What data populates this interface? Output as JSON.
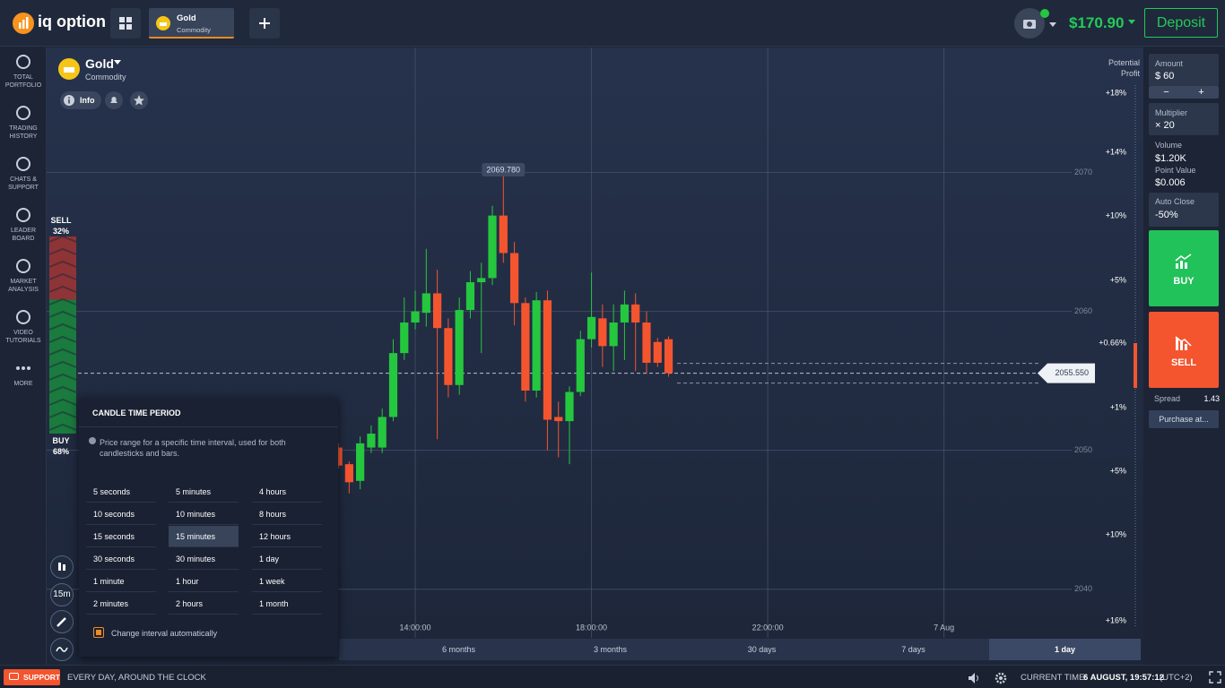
{
  "header": {
    "logo": "iq option",
    "tab_title": "Gold",
    "tab_subtitle": "Commodity",
    "balance": "$170.90",
    "deposit": "Deposit"
  },
  "sidebar": [
    "TOTAL PORTFOLIO",
    "TRADING HISTORY",
    "CHATS & SUPPORT",
    "LEADER BOARD",
    "MARKET ANALYSIS",
    "VIDEO TUTORIALS",
    "MORE"
  ],
  "asset": {
    "name": "Gold",
    "type": "Commodity",
    "info": "Info"
  },
  "sentiment": {
    "sell_label": "SELL",
    "sell": {
      "value": 32,
      "label": "32%"
    },
    "buy_label": "BUY",
    "buy": {
      "value": 68,
      "label": "68%"
    }
  },
  "chart_data": {
    "type": "candlestick",
    "x": [
      12.25,
      12.5,
      12.75,
      13.0,
      13.25,
      13.5,
      13.75,
      14.0,
      14.25,
      14.5,
      14.75,
      15.0,
      15.25,
      15.5,
      15.75,
      16.0,
      16.25,
      16.5,
      16.75,
      17.0,
      17.25,
      17.5,
      17.75,
      18.0,
      18.25,
      18.5,
      18.75,
      19.0,
      19.25,
      19.5,
      19.75
    ],
    "open": [
      2050.2,
      2049.0,
      2047.8,
      2050.2,
      2050.2,
      2052.4,
      2057.0,
      2059.2,
      2059.9,
      2061.3,
      2058.8,
      2054.7,
      2060.1,
      2062.1,
      2062.4,
      2066.9,
      2064.2,
      2060.6,
      2054.3,
      2060.8,
      2052.4,
      2052.1,
      2054.2,
      2058.0,
      2059.5,
      2057.5,
      2059.2,
      2060.5,
      2059.2,
      2057.8,
      2058.0
    ],
    "high": [
      2050.5,
      2049.2,
      2051.0,
      2051.8,
      2053.0,
      2058.0,
      2061.0,
      2061.5,
      2064.5,
      2063.0,
      2059.5,
      2061.0,
      2062.9,
      2063.5,
      2067.6,
      2069.78,
      2065.0,
      2061.0,
      2061.4,
      2061.5,
      2053.5,
      2054.6,
      2058.6,
      2062.8,
      2060.5,
      2060.5,
      2061.5,
      2061.3,
      2060.0,
      2058.1,
      2058.2
    ],
    "low": [
      2048.7,
      2046.9,
      2047.2,
      2049.8,
      2049.8,
      2052.1,
      2056.5,
      2058.7,
      2058.9,
      2050.8,
      2053.8,
      2054.0,
      2059.5,
      2057.0,
      2061.9,
      2063.5,
      2059.0,
      2053.5,
      2053.8,
      2050.0,
      2049.5,
      2049.0,
      2053.9,
      2057.4,
      2056.0,
      2055.7,
      2056.5,
      2055.7,
      2055.5,
      2056.0,
      2055.3
    ],
    "close": [
      2048.9,
      2047.7,
      2050.5,
      2051.2,
      2052.4,
      2057.0,
      2059.2,
      2060.0,
      2061.3,
      2058.8,
      2054.7,
      2060.1,
      2062.1,
      2062.4,
      2066.9,
      2064.2,
      2060.6,
      2054.3,
      2060.8,
      2052.2,
      2052.1,
      2054.2,
      2058.0,
      2059.6,
      2057.5,
      2059.2,
      2060.5,
      2059.2,
      2056.3,
      2056.3,
      2055.55
    ],
    "up_color": "#25c73f",
    "down_color": "#f4552f",
    "xlim": [
      6,
      29
    ],
    "xticks": [
      {
        "value": 14,
        "label": "14:00:00"
      },
      {
        "value": 18,
        "label": "18:00:00"
      },
      {
        "value": 22,
        "label": "22:00:00"
      },
      {
        "value": 26,
        "label": "7 Aug"
      }
    ],
    "ylim": [
      2036.5,
      2079
    ],
    "yticks": [
      2040,
      2050,
      2060,
      2070
    ],
    "grid": true,
    "max_price": {
      "value": 2069.78,
      "label": "2069.780"
    },
    "current_price": {
      "value": 2055.55,
      "label": "2055.550"
    },
    "profit_title": "Potential Profit",
    "profit_scale": [
      "+18%",
      "+14%",
      "+10%",
      "+5%",
      "+0.66%",
      "+1%",
      "+5%",
      "+10%",
      "+16%"
    ]
  },
  "periods": [
    "6 months",
    "3 months",
    "30 days",
    "7 days",
    "1 day"
  ],
  "selected_period": 4,
  "candle_popup": {
    "title": "CANDLE TIME PERIOD",
    "description": "Price range for a specific time interval, used for both candlesticks and bars.",
    "options": [
      [
        "5 seconds",
        "10 seconds",
        "15 seconds",
        "30 seconds",
        "1 minute",
        "2 minutes"
      ],
      [
        "5 minutes",
        "10 minutes",
        "15 minutes",
        "30 minutes",
        "1 hour",
        "2 hours"
      ],
      [
        "4 hours",
        "8 hours",
        "12 hours",
        "1 day",
        "1 week",
        "1 month"
      ]
    ],
    "selected": [
      1,
      2
    ],
    "auto_label": "Change interval automatically"
  },
  "tools": {
    "interval": "15m"
  },
  "trade_panel": {
    "amount_label": "Amount",
    "amount": "$ 60",
    "minus": "−",
    "plus": "+",
    "multiplier_label": "Multiplier",
    "multiplier": "× 20",
    "volume_label": "Volume",
    "volume": "$1.20K",
    "point_value_label": "Point Value",
    "point_value": "$0.006",
    "auto_close_label": "Auto Close",
    "auto_close": "-50%",
    "buy": "BUY",
    "sell": "SELL",
    "spread_label": "Spread",
    "spread": "1.43",
    "purchase": "Purchase at..."
  },
  "footer": {
    "support": "SUPPORT",
    "tagline": "EVERY DAY, AROUND THE CLOCK",
    "time_label": "CURRENT TIME:",
    "time": "6 AUGUST, 19:57:12",
    "timezone": "(UTC+2)"
  }
}
